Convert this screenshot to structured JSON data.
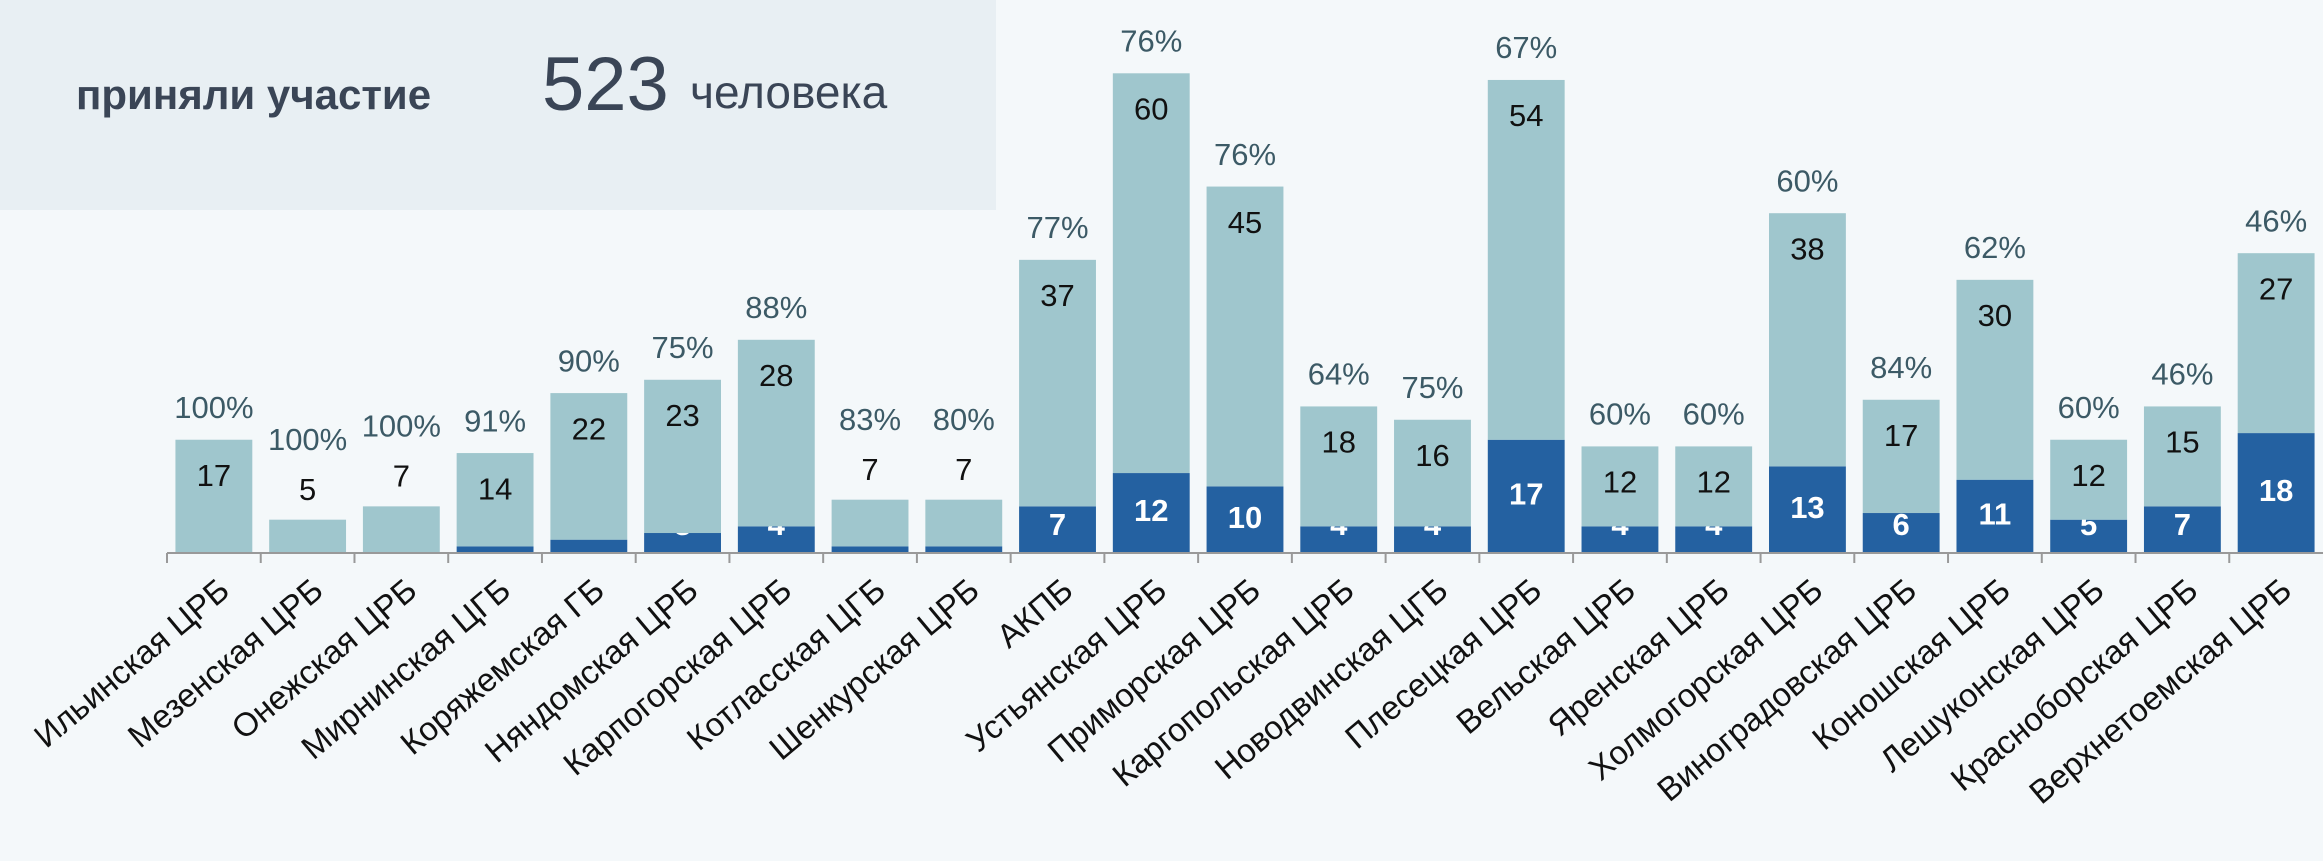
{
  "header": {
    "label": "приняли участие",
    "count": "523",
    "unit": "человека"
  },
  "chart_data": {
    "type": "stacked-bar",
    "categories": [
      "Ильинская ЦРБ",
      "Мезенская ЦРБ",
      "Онежская ЦРБ",
      "Мирнинская ЦГБ",
      "Коряжемская ГБ",
      "Няндомская ЦРБ",
      "Карпогорская ЦРБ",
      "Котласская ЦГБ",
      "Шенкурская ЦРБ",
      "АКПБ",
      "Устьянская ЦРБ",
      "Приморская ЦРБ",
      "Каргопольская ЦРБ",
      "Новодвинская ЦГБ",
      "Плесецкая ЦРБ",
      "Вельская ЦРБ",
      "Яренская ЦРБ",
      "Холмогорская ЦРБ",
      "Виноградовская ЦРБ",
      "Коношская ЦРБ",
      "Лешуконская ЦРБ",
      "Красноборская ЦРБ",
      "Верхнетоемская ЦРБ"
    ],
    "series": [
      {
        "color": "#2461a1",
        "values": [
          0,
          0,
          0,
          1,
          2,
          3,
          4,
          1,
          1,
          7,
          12,
          10,
          4,
          4,
          17,
          4,
          4,
          13,
          6,
          11,
          5,
          7,
          18
        ],
        "value_labels": [
          null,
          null,
          "0",
          "1",
          "2",
          "3",
          "4",
          "1",
          null,
          "7",
          "12",
          "10",
          "4",
          "4",
          "17",
          "4",
          "4",
          "13",
          "6",
          "11",
          "5",
          "7",
          "18"
        ]
      },
      {
        "color": "#9fc6cd",
        "values": [
          17,
          5,
          7,
          14,
          22,
          23,
          28,
          7,
          7,
          37,
          60,
          45,
          18,
          16,
          54,
          12,
          12,
          38,
          17,
          30,
          12,
          15,
          27
        ]
      }
    ],
    "percent_labels": [
      "100%",
      "100%",
      "100%",
      "91%",
      "90%",
      "75%",
      "88%",
      "83%",
      "80%",
      "77%",
      "76%",
      "76%",
      "64%",
      "75%",
      "67%",
      "60%",
      "60%",
      "60%",
      "84%",
      "62%",
      "60%",
      "46%",
      "46%"
    ],
    "ylim": [
      0,
      80
    ]
  }
}
